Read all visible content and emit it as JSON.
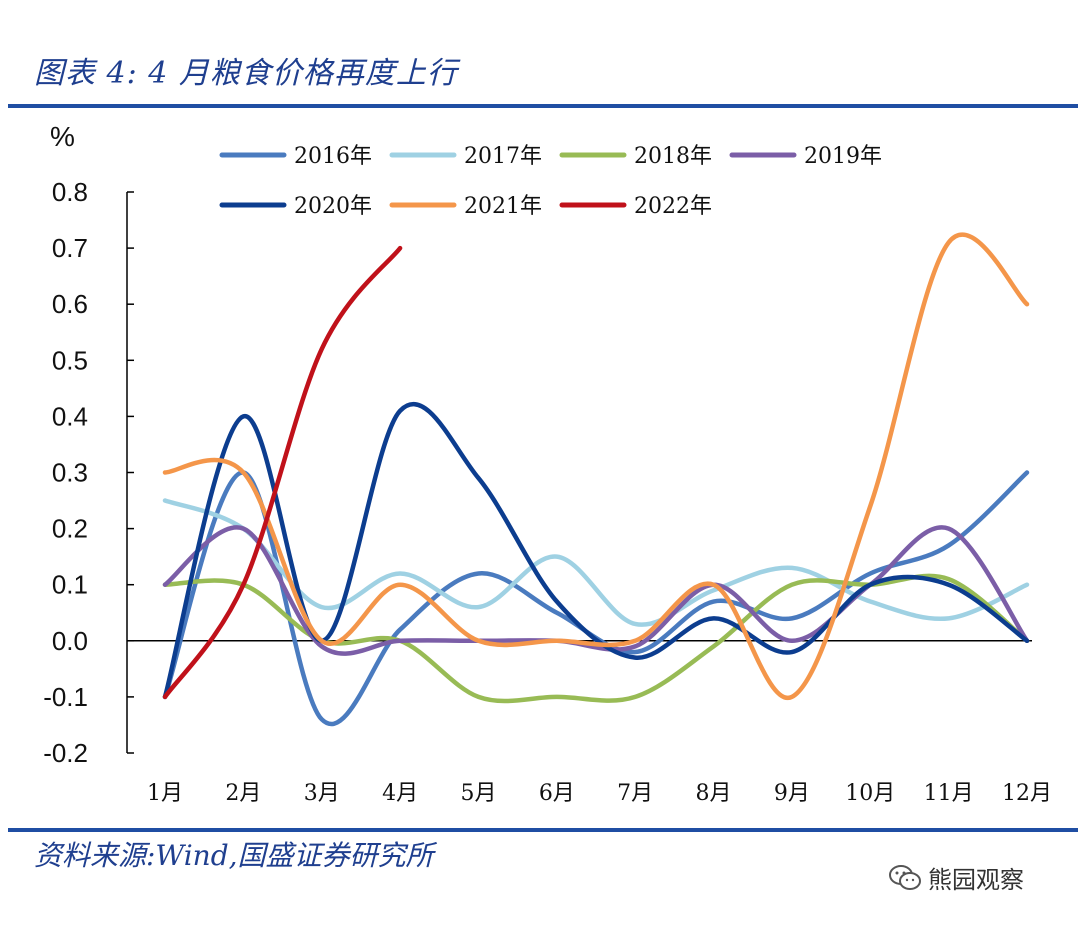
{
  "header": {
    "title": "图表 4:  4 月粮食价格再度上行"
  },
  "footer": {
    "source": "资料来源:Wind,国盛证券研究所",
    "watermark": "熊园观察"
  },
  "colors": {
    "2016年": "#4a7bbf",
    "2017年": "#9fd1e3",
    "2018年": "#98bb55",
    "2019年": "#7b5ea7",
    "2020年": "#0c3d8f",
    "2021年": "#f4964a",
    "2022年": "#c0111a"
  },
  "chart_data": {
    "type": "line",
    "title": "4 月粮食价格再度上行",
    "ylabel": "%",
    "xlabel": "",
    "ylim": [
      -0.2,
      0.8
    ],
    "yticks": [
      "0.8",
      "0.7",
      "0.6",
      "0.5",
      "0.4",
      "0.3",
      "0.2",
      "0.1",
      "0.0",
      "-0.1",
      "-0.2"
    ],
    "categories": [
      "1月",
      "2月",
      "3月",
      "4月",
      "5月",
      "6月",
      "7月",
      "8月",
      "9月",
      "10月",
      "11月",
      "12月"
    ],
    "series": [
      {
        "name": "2016年",
        "values": [
          -0.1,
          0.3,
          -0.14,
          0.02,
          0.12,
          0.05,
          -0.02,
          0.07,
          0.04,
          0.12,
          0.17,
          0.3
        ]
      },
      {
        "name": "2017年",
        "values": [
          0.25,
          0.2,
          0.06,
          0.12,
          0.06,
          0.15,
          0.03,
          0.09,
          0.13,
          0.07,
          0.04,
          0.1
        ]
      },
      {
        "name": "2018年",
        "values": [
          0.1,
          0.1,
          0.0,
          0.0,
          -0.1,
          -0.1,
          -0.1,
          -0.01,
          0.1,
          0.1,
          0.11,
          0.0
        ]
      },
      {
        "name": "2019年",
        "values": [
          0.1,
          0.2,
          -0.01,
          0.0,
          0.0,
          0.0,
          -0.01,
          0.1,
          0.0,
          0.1,
          0.2,
          0.0
        ]
      },
      {
        "name": "2020年",
        "values": [
          -0.1,
          0.4,
          0.0,
          0.41,
          0.29,
          0.07,
          -0.03,
          0.04,
          -0.02,
          0.1,
          0.1,
          0.0
        ]
      },
      {
        "name": "2021年",
        "values": [
          0.3,
          0.3,
          0.0,
          0.1,
          0.0,
          0.0,
          0.0,
          0.1,
          -0.1,
          0.24,
          0.71,
          0.6
        ]
      },
      {
        "name": "2022年",
        "values": [
          -0.1,
          0.1,
          0.52,
          0.7,
          null,
          null,
          null,
          null,
          null,
          null,
          null,
          null
        ]
      }
    ]
  }
}
